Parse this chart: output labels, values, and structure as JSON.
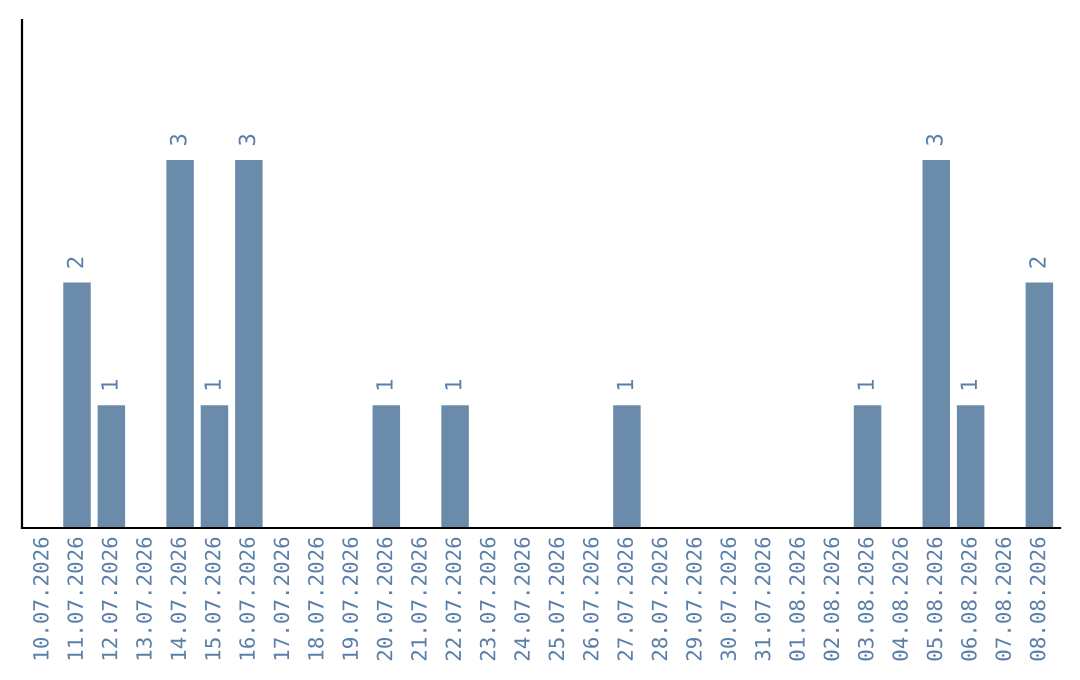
{
  "chart_data": {
    "type": "bar",
    "categories": [
      "10.07.2026",
      "11.07.2026",
      "12.07.2026",
      "13.07.2026",
      "14.07.2026",
      "15.07.2026",
      "16.07.2026",
      "17.07.2026",
      "18.07.2026",
      "19.07.2026",
      "20.07.2026",
      "21.07.2026",
      "22.07.2026",
      "23.07.2026",
      "24.07.2026",
      "25.07.2026",
      "26.07.2026",
      "27.07.2026",
      "28.07.2026",
      "29.07.2026",
      "30.07.2026",
      "31.07.2026",
      "01.08.2026",
      "02.08.2026",
      "03.08.2026",
      "04.08.2026",
      "05.08.2026",
      "06.08.2026",
      "07.08.2026",
      "08.08.2026"
    ],
    "values": [
      0,
      2,
      1,
      0,
      3,
      1,
      3,
      0,
      0,
      0,
      1,
      0,
      1,
      0,
      0,
      0,
      0,
      1,
      0,
      0,
      0,
      0,
      0,
      0,
      1,
      0,
      3,
      1,
      0,
      2
    ],
    "value_labels": [
      null,
      "2",
      "1",
      null,
      "3",
      "1",
      "3",
      null,
      null,
      null,
      "1",
      null,
      "1",
      null,
      null,
      null,
      null,
      "1",
      null,
      null,
      null,
      null,
      null,
      null,
      "1",
      null,
      "3",
      "1",
      null,
      "2"
    ],
    "color": "#6a8caa",
    "tick_labels": "x",
    "grid": false
  }
}
